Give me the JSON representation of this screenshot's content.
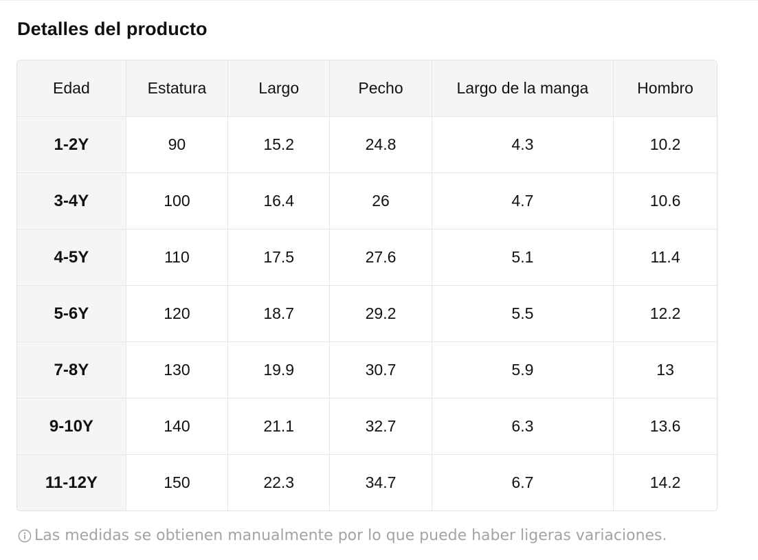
{
  "title": "Detalles del producto",
  "table": {
    "headers": [
      "Edad",
      "Estatura",
      "Largo",
      "Pecho",
      "Largo de la manga",
      "Hombro"
    ],
    "rows": [
      [
        "1-2Y",
        "90",
        "15.2",
        "24.8",
        "4.3",
        "10.2"
      ],
      [
        "3-4Y",
        "100",
        "16.4",
        "26",
        "4.7",
        "10.6"
      ],
      [
        "4-5Y",
        "110",
        "17.5",
        "27.6",
        "5.1",
        "11.4"
      ],
      [
        "5-6Y",
        "120",
        "18.7",
        "29.2",
        "5.5",
        "12.2"
      ],
      [
        "7-8Y",
        "130",
        "19.9",
        "30.7",
        "5.9",
        "13"
      ],
      [
        "9-10Y",
        "140",
        "21.1",
        "32.7",
        "6.3",
        "13.6"
      ],
      [
        "11-12Y",
        "150",
        "22.3",
        "34.7",
        "6.7",
        "14.2"
      ]
    ]
  },
  "note": {
    "icon": "info-icon",
    "text": "Las medidas se obtienen manualmente por lo que puede haber ligeras variaciones."
  },
  "colors": {
    "header_bg": "#f5f5f5",
    "border": "#e6e6e6",
    "note_text": "#a3a3a3"
  }
}
